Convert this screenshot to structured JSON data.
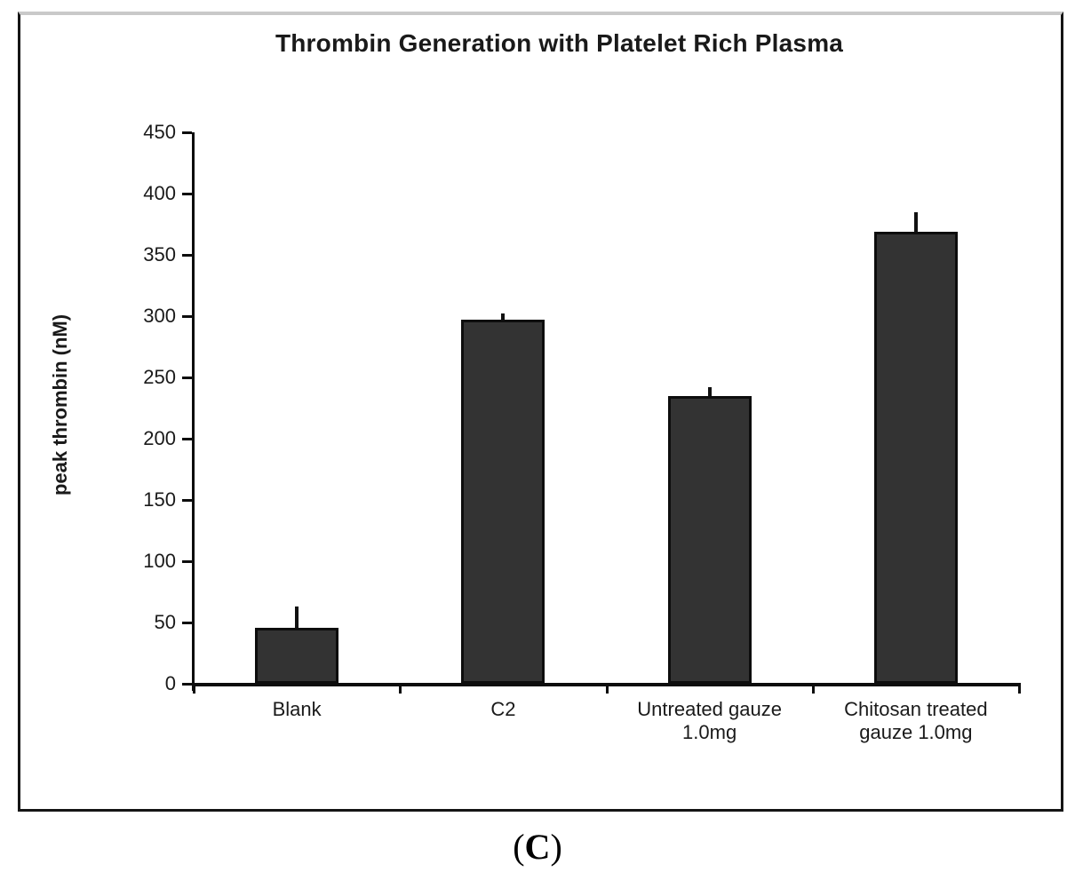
{
  "chart_data": {
    "type": "bar",
    "title": "Thrombin Generation with Platelet Rich Plasma",
    "ylabel": "peak thrombin (nM)",
    "xlabel": "",
    "categories": [
      "Blank",
      "C2",
      "Untreated gauze\n1.0mg",
      "Chitosan treated\ngauze 1.0mg"
    ],
    "values": [
      46,
      297,
      235,
      369
    ],
    "errors_plus": [
      17,
      5,
      7,
      16
    ],
    "ylim": [
      0,
      450
    ],
    "ytick_step": 50,
    "yticks": [
      0,
      50,
      100,
      150,
      200,
      250,
      300,
      350,
      400,
      450
    ],
    "grid": false,
    "legend": false,
    "bar_color": "#333333",
    "bar_border_color": "#0d0d0d",
    "error_color": "#111111",
    "axis_color": "#0d0d0d"
  },
  "caption": {
    "prefix": "(",
    "letter": "C",
    "suffix": ")"
  }
}
